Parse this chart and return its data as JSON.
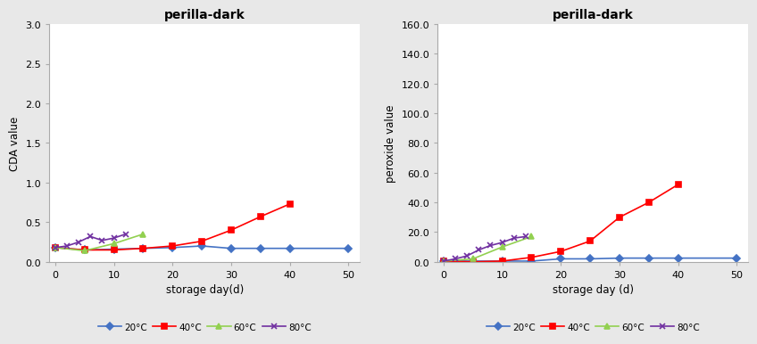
{
  "title": "perilla-dark",
  "left": {
    "ylabel": "CDA value",
    "xlabel": "storage day(d)",
    "xlim": [
      -1,
      52
    ],
    "ylim": [
      0,
      3
    ],
    "yticks": [
      0,
      0.5,
      1.0,
      1.5,
      2.0,
      2.5,
      3.0
    ],
    "xticks": [
      0,
      10,
      20,
      30,
      40,
      50
    ],
    "series": {
      "20°C": {
        "x": [
          0,
          5,
          10,
          15,
          20,
          25,
          30,
          35,
          40,
          50
        ],
        "y": [
          0.18,
          0.15,
          0.16,
          0.17,
          0.18,
          0.2,
          0.17,
          0.17,
          0.17,
          0.17
        ],
        "color": "#4472C4",
        "marker": "D"
      },
      "40°C": {
        "x": [
          0,
          5,
          10,
          15,
          20,
          25,
          30,
          35,
          40
        ],
        "y": [
          0.18,
          0.15,
          0.15,
          0.17,
          0.2,
          0.26,
          0.4,
          0.57,
          0.73
        ],
        "color": "#FF0000",
        "marker": "s"
      },
      "60°C": {
        "x": [
          0,
          5,
          10,
          15
        ],
        "y": [
          0.18,
          0.14,
          0.23,
          0.35
        ],
        "color": "#92D050",
        "marker": "^"
      },
      "80°C": {
        "x": [
          0,
          2,
          4,
          6,
          8,
          10,
          12
        ],
        "y": [
          0.18,
          0.2,
          0.25,
          0.32,
          0.27,
          0.3,
          0.35
        ],
        "color": "#7030A0",
        "marker": "x"
      }
    }
  },
  "right": {
    "ylabel": "peroxide value",
    "xlabel": "storage day (d)",
    "xlim": [
      -1,
      52
    ],
    "ylim": [
      0,
      160
    ],
    "yticks": [
      0.0,
      20.0,
      40.0,
      60.0,
      80.0,
      100.0,
      120.0,
      140.0,
      160.0
    ],
    "xticks": [
      0,
      10,
      20,
      30,
      40,
      50
    ],
    "series": {
      "20°C": {
        "x": [
          0,
          5,
          10,
          15,
          20,
          25,
          30,
          35,
          40,
          50
        ],
        "y": [
          0.5,
          0.5,
          0.5,
          0.5,
          2.0,
          2.0,
          2.5,
          2.5,
          2.5,
          2.5
        ],
        "color": "#4472C4",
        "marker": "D"
      },
      "40°C": {
        "x": [
          0,
          5,
          10,
          15,
          20,
          25,
          30,
          35,
          40
        ],
        "y": [
          0.5,
          0.0,
          0.5,
          3.0,
          7.0,
          14.0,
          30.0,
          40.0,
          52.0
        ],
        "color": "#FF0000",
        "marker": "s"
      },
      "60°C": {
        "x": [
          0,
          5,
          10,
          15
        ],
        "y": [
          0.5,
          2.0,
          10.0,
          17.0
        ],
        "color": "#92D050",
        "marker": "^"
      },
      "80°C": {
        "x": [
          0,
          2,
          4,
          6,
          8,
          10,
          12,
          14
        ],
        "y": [
          0.5,
          2.0,
          4.0,
          8.0,
          11.0,
          13.0,
          16.0,
          17.0
        ],
        "color": "#7030A0",
        "marker": "x"
      }
    }
  },
  "legend_order": [
    "20°C",
    "40°C",
    "60°C",
    "80°C"
  ],
  "background_color": "#FFFFFF",
  "outer_bg": "#E8E8E8"
}
